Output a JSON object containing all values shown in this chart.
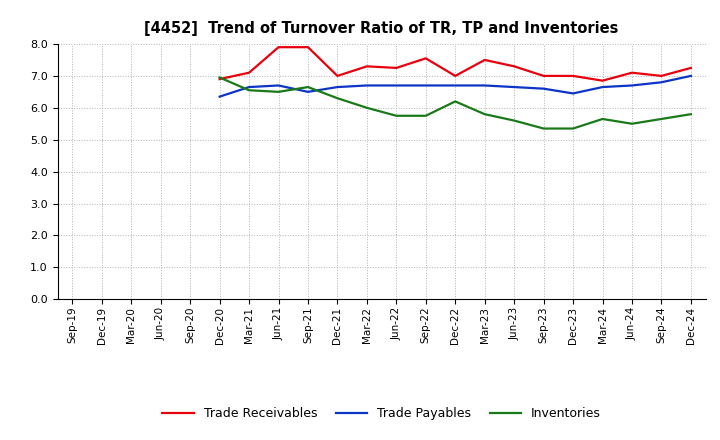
{
  "title": "[4452]  Trend of Turnover Ratio of TR, TP and Inventories",
  "x_labels": [
    "Sep-19",
    "Dec-19",
    "Mar-20",
    "Jun-20",
    "Sep-20",
    "Dec-20",
    "Mar-21",
    "Jun-21",
    "Sep-21",
    "Dec-21",
    "Mar-22",
    "Jun-22",
    "Sep-22",
    "Dec-22",
    "Mar-23",
    "Jun-23",
    "Sep-23",
    "Dec-23",
    "Mar-24",
    "Jun-24",
    "Sep-24",
    "Dec-24"
  ],
  "trade_receivables": [
    null,
    null,
    null,
    null,
    null,
    6.9,
    7.1,
    7.9,
    7.9,
    7.0,
    7.3,
    7.25,
    7.55,
    7.0,
    7.5,
    7.3,
    7.0,
    7.0,
    6.85,
    7.1,
    7.0,
    7.25
  ],
  "trade_payables": [
    null,
    null,
    null,
    null,
    null,
    6.35,
    6.65,
    6.7,
    6.5,
    6.65,
    6.7,
    6.7,
    6.7,
    6.7,
    6.7,
    6.65,
    6.6,
    6.45,
    6.65,
    6.7,
    6.8,
    7.0
  ],
  "inventories": [
    null,
    null,
    null,
    null,
    null,
    6.95,
    6.55,
    6.5,
    6.65,
    6.3,
    6.0,
    5.75,
    5.75,
    6.2,
    5.8,
    5.6,
    5.35,
    5.35,
    5.65,
    5.5,
    5.65,
    5.8
  ],
  "ylim": [
    0.0,
    8.0
  ],
  "yticks": [
    0.0,
    1.0,
    2.0,
    3.0,
    4.0,
    5.0,
    6.0,
    7.0,
    8.0
  ],
  "line_colors": {
    "trade_receivables": "#e8000d",
    "trade_payables": "#0c35c8",
    "inventories": "#1a7a1a"
  },
  "legend_labels": [
    "Trade Receivables",
    "Trade Payables",
    "Inventories"
  ],
  "background_color": "#ffffff",
  "grid_color": "#aaaaaa"
}
